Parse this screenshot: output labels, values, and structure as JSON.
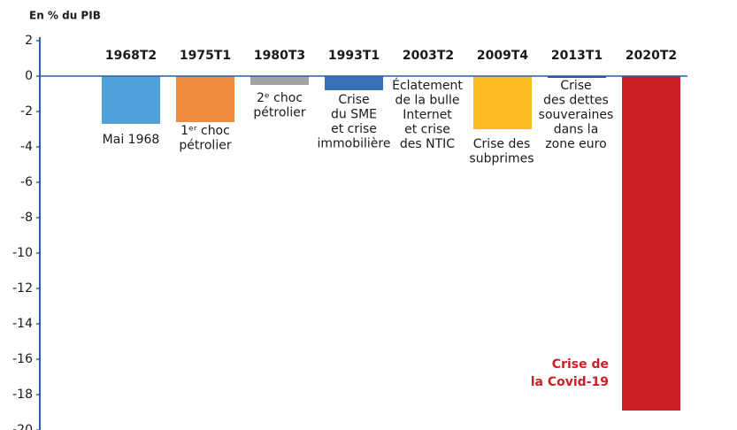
{
  "chart_data": {
    "type": "bar",
    "y_label": "En % du PIB",
    "categories": [
      "1968T2",
      "1975T1",
      "1980T3",
      "1993T1",
      "2003T2",
      "2009T4",
      "2013T1",
      "2020T2"
    ],
    "values": [
      -2.7,
      -2.6,
      -0.5,
      -0.8,
      0,
      -3.0,
      -0.1,
      -18.9
    ],
    "colors": [
      "#4f9fd9",
      "#f08a3c",
      "#a3a3a3",
      "#3a6fba",
      "#3a6fba",
      "#fbbd22",
      "#2a4fa0",
      "#cc1f26"
    ],
    "annotations": [
      [
        "Mai 1968"
      ],
      [
        "1ᵉʳ choc",
        "pétrolier"
      ],
      [
        "2ᵉ choc",
        "pétrolier"
      ],
      [
        "Crise",
        "du SME",
        "et crise",
        "immobilière"
      ],
      [
        "Éclatement",
        "de la bulle",
        "Internet",
        "et crise",
        "des NTIC"
      ],
      [
        "Crise des",
        "subprimes"
      ],
      [
        "Crise",
        "des dettes",
        "souveraines",
        "dans la",
        "zone euro"
      ],
      [
        "Crise de",
        "la Covid-19"
      ]
    ],
    "ylim": [
      -20,
      2
    ],
    "yticks": [
      2,
      0,
      -2,
      -4,
      -6,
      -8,
      -10,
      -12,
      -14,
      -16,
      -18,
      -20
    ],
    "grid": false
  }
}
